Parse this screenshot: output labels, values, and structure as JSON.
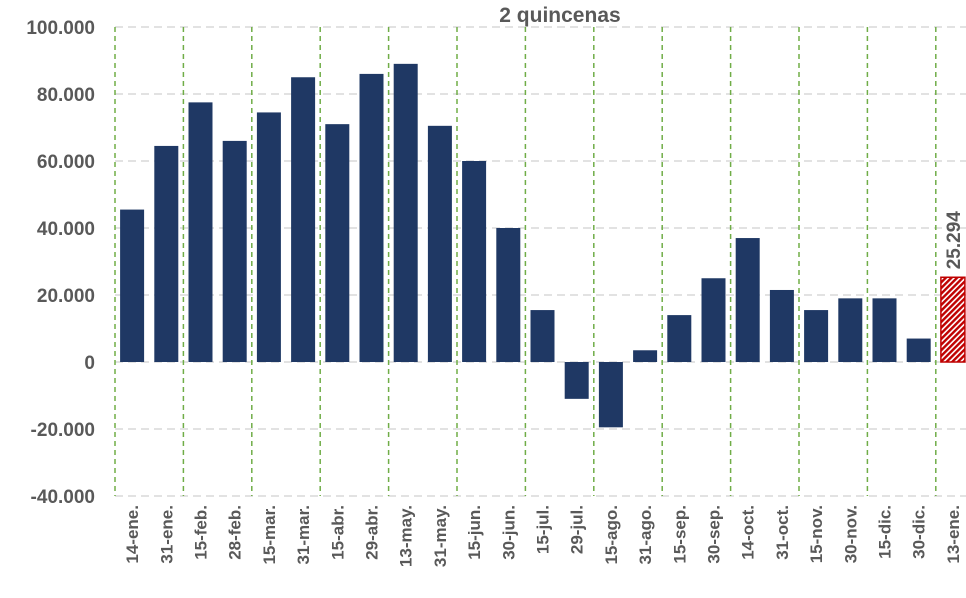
{
  "chart_data": {
    "type": "bar",
    "title": "2 quincenas",
    "categories": [
      "14-ene.",
      "31-ene.",
      "15-feb.",
      "28-feb.",
      "15-mar.",
      "31-mar.",
      "15-abr.",
      "29-abr.",
      "13-may.",
      "31-may.",
      "15-jun.",
      "30-jun.",
      "15-jul.",
      "29-jul.",
      "15-ago.",
      "31-ago.",
      "15-sep.",
      "30-sep.",
      "14-oct.",
      "31-oct.",
      "15-nov.",
      "30-nov.",
      "15-dic.",
      "30-dic.",
      "13-ene."
    ],
    "values": [
      45500,
      64500,
      77500,
      66000,
      74500,
      85000,
      71000,
      86000,
      89000,
      70500,
      60000,
      40000,
      15500,
      -11000,
      -19500,
      3500,
      14000,
      25000,
      37000,
      21500,
      15500,
      19000,
      19000,
      7000,
      25294
    ],
    "value_labels": [
      null,
      null,
      null,
      null,
      null,
      null,
      null,
      null,
      null,
      null,
      null,
      null,
      null,
      null,
      null,
      null,
      null,
      null,
      null,
      null,
      null,
      null,
      null,
      null,
      "25.294"
    ],
    "colors": [
      "#1f3864",
      "#1f3864",
      "#1f3864",
      "#1f3864",
      "#1f3864",
      "#1f3864",
      "#1f3864",
      "#1f3864",
      "#1f3864",
      "#1f3864",
      "#1f3864",
      "#1f3864",
      "#1f3864",
      "#1f3864",
      "#1f3864",
      "#1f3864",
      "#1f3864",
      "#1f3864",
      "#1f3864",
      "#1f3864",
      "#1f3864",
      "#1f3864",
      "#1f3864",
      "#1f3864",
      "#c00000"
    ],
    "ylim": [
      -40000,
      100000
    ],
    "yticks": [
      {
        "value": -40000,
        "label": "-40.000"
      },
      {
        "value": -20000,
        "label": "-20.000"
      },
      0,
      {
        "value": 20000,
        "label": "20.000"
      },
      {
        "value": 40000,
        "label": "40.000"
      },
      {
        "value": 60000,
        "label": "60.000"
      },
      {
        "value": 80000,
        "label": "80.000"
      },
      {
        "value": 100000,
        "label": "100.000"
      }
    ],
    "grid": true
  }
}
